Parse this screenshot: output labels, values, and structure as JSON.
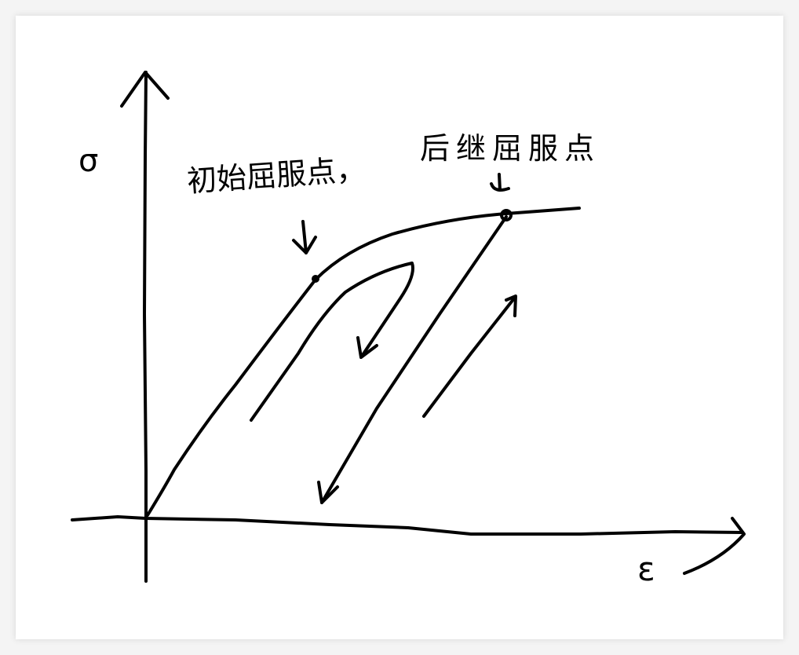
{
  "diagram": {
    "y_axis_label": "σ",
    "x_axis_label": "ε",
    "annotations": {
      "initial_yield_point": "初始屈服点",
      "separator": "，",
      "subsequent_yield_point": "后继屈服点"
    },
    "stroke_color": "#000000",
    "background": "#ffffff"
  }
}
